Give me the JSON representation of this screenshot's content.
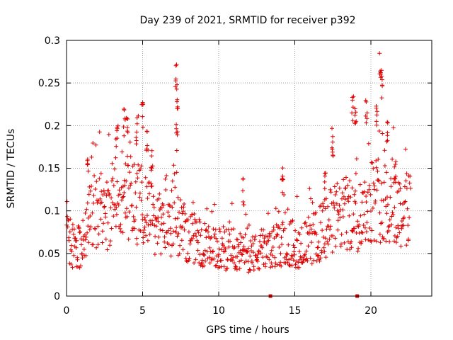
{
  "chart_data": {
    "type": "scatter",
    "title": "Day 239 of 2021, SRMTID for receiver p392",
    "xlabel": "GPS time / hours",
    "ylabel": "SRMTID / TECUs",
    "xlim": [
      0,
      24
    ],
    "ylim": [
      0,
      0.3
    ],
    "xticks": [
      0,
      5,
      10,
      15,
      20
    ],
    "xtick_labels": [
      "0",
      "5",
      "10",
      "15",
      "20"
    ],
    "yticks": [
      0,
      0.05,
      0.1,
      0.15,
      0.2,
      0.25,
      0.3
    ],
    "ytick_labels": [
      "0",
      "0.05",
      "0.1",
      "0.15",
      "0.2",
      "0.25",
      "0.3"
    ],
    "grid": true,
    "marker": "+",
    "color": "#e00000",
    "zero_markers": [
      13.4,
      19.1
    ],
    "series": [
      {
        "name": "SRMTID",
        "x_range": [
          0.0,
          22.6
        ],
        "x_step": 0.025,
        "trend_hours": [
          0.0,
          0.5,
          1.0,
          1.5,
          2.0,
          2.5,
          3.0,
          3.5,
          4.0,
          4.5,
          5.0,
          5.5,
          6.0,
          6.5,
          7.0,
          7.5,
          8.0,
          8.5,
          9.0,
          9.5,
          10.0,
          10.5,
          11.0,
          11.5,
          12.0,
          12.5,
          13.0,
          13.5,
          14.0,
          14.5,
          15.0,
          15.5,
          16.0,
          16.5,
          17.0,
          17.5,
          18.0,
          18.5,
          19.0,
          19.5,
          20.0,
          20.5,
          21.0,
          21.5,
          22.0,
          22.6
        ],
        "trend_values": [
          0.065,
          0.06,
          0.055,
          0.09,
          0.1,
          0.09,
          0.1,
          0.11,
          0.12,
          0.11,
          0.105,
          0.095,
          0.085,
          0.08,
          0.085,
          0.08,
          0.07,
          0.065,
          0.06,
          0.055,
          0.055,
          0.055,
          0.055,
          0.05,
          0.05,
          0.05,
          0.05,
          0.055,
          0.06,
          0.065,
          0.06,
          0.06,
          0.065,
          0.07,
          0.08,
          0.09,
          0.095,
          0.095,
          0.09,
          0.1,
          0.115,
          0.115,
          0.11,
          0.105,
          0.1,
          0.1
        ],
        "spikes": [
          {
            "x": 1.4,
            "y": 0.17
          },
          {
            "x": 3.3,
            "y": 0.2
          },
          {
            "x": 3.8,
            "y": 0.22
          },
          {
            "x": 4.0,
            "y": 0.225
          },
          {
            "x": 4.6,
            "y": 0.21
          },
          {
            "x": 5.0,
            "y": 0.23
          },
          {
            "x": 5.3,
            "y": 0.205
          },
          {
            "x": 5.6,
            "y": 0.18
          },
          {
            "x": 7.2,
            "y": 0.28
          },
          {
            "x": 7.3,
            "y": 0.25
          },
          {
            "x": 7.25,
            "y": 0.205
          },
          {
            "x": 11.6,
            "y": 0.14
          },
          {
            "x": 14.2,
            "y": 0.155
          },
          {
            "x": 17.0,
            "y": 0.145
          },
          {
            "x": 17.5,
            "y": 0.2
          },
          {
            "x": 18.8,
            "y": 0.24
          },
          {
            "x": 19.0,
            "y": 0.225
          },
          {
            "x": 19.7,
            "y": 0.235
          },
          {
            "x": 20.4,
            "y": 0.225
          },
          {
            "x": 20.6,
            "y": 0.285
          },
          {
            "x": 20.7,
            "y": 0.265
          },
          {
            "x": 21.1,
            "y": 0.21
          },
          {
            "x": 21.6,
            "y": 0.165
          }
        ]
      }
    ]
  }
}
